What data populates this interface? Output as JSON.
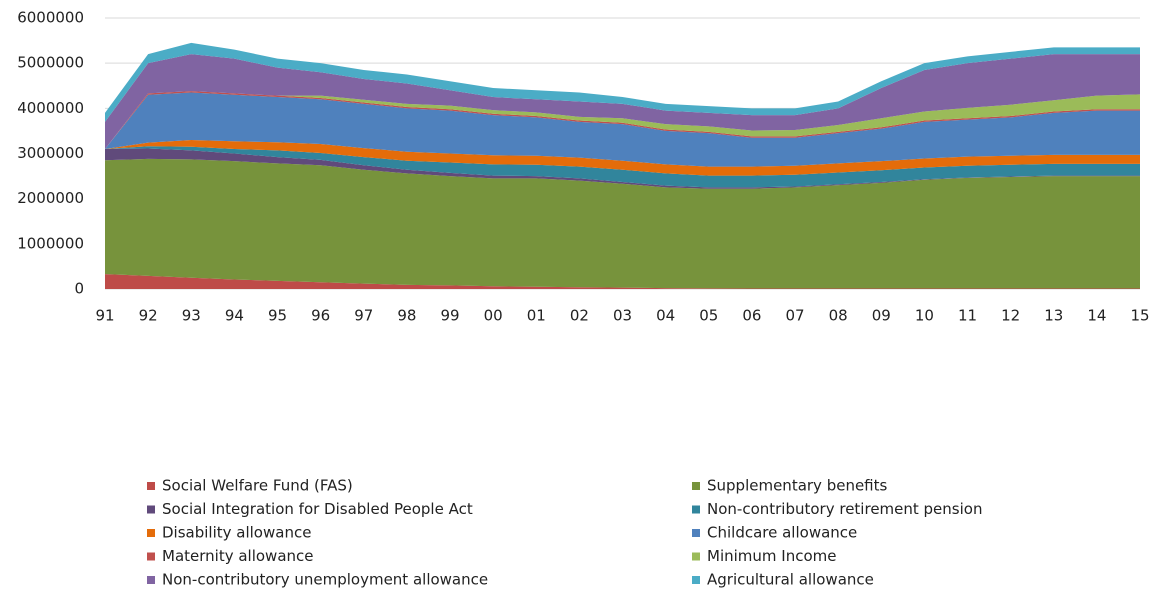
{
  "chart_data": {
    "type": "stacked-area",
    "categories": [
      "91",
      "92",
      "93",
      "94",
      "95",
      "96",
      "97",
      "98",
      "99",
      "00",
      "01",
      "02",
      "03",
      "04",
      "05",
      "06",
      "07",
      "08",
      "09",
      "10",
      "11",
      "12",
      "13",
      "14",
      "15"
    ],
    "ylim": [
      0,
      6000000
    ],
    "yticks": [
      0,
      1000000,
      2000000,
      3000000,
      4000000,
      5000000,
      6000000
    ],
    "grid": true,
    "series": [
      {
        "name": "Social Welfare Fund (FAS)",
        "color": "#be4b48",
        "values": [
          330000,
          290000,
          250000,
          210000,
          180000,
          150000,
          120000,
          90000,
          80000,
          60000,
          50000,
          40000,
          30000,
          20000,
          15000,
          10000,
          10000,
          10000,
          10000,
          10000,
          10000,
          10000,
          10000,
          10000,
          10000
        ]
      },
      {
        "name": "Supplementary benefits",
        "color": "#77933c",
        "values": [
          2520000,
          2590000,
          2620000,
          2620000,
          2600000,
          2590000,
          2520000,
          2470000,
          2420000,
          2390000,
          2400000,
          2360000,
          2300000,
          2230000,
          2205000,
          2210000,
          2240000,
          2290000,
          2340000,
          2410000,
          2450000,
          2470000,
          2490000,
          2490000,
          2490000
        ]
      },
      {
        "name": "Social Integration for Disabled People Act",
        "color": "#604a7b",
        "values": [
          250000,
          230000,
          200000,
          170000,
          140000,
          120000,
          100000,
          80000,
          70000,
          60000,
          50000,
          50000,
          40000,
          40000,
          30000,
          30000,
          20000,
          20000,
          20000,
          10000,
          10000,
          10000,
          10000,
          10000,
          10000
        ]
      },
      {
        "name": "Non-contributory retirement pension",
        "color": "#31859c",
        "values": [
          0,
          50000,
          80000,
          100000,
          150000,
          150000,
          180000,
          200000,
          230000,
          250000,
          250000,
          260000,
          270000,
          270000,
          260000,
          260000,
          260000,
          260000,
          260000,
          260000,
          260000,
          260000,
          260000,
          260000,
          260000
        ]
      },
      {
        "name": "Disability allowance",
        "color": "#e46c0a",
        "values": [
          0,
          80000,
          150000,
          170000,
          180000,
          200000,
          200000,
          200000,
          200000,
          200000,
          200000,
          200000,
          200000,
          200000,
          200000,
          200000,
          200000,
          200000,
          200000,
          200000,
          200000,
          200000,
          200000,
          200000,
          200000
        ]
      },
      {
        "name": "Childcare allowance",
        "color": "#4f81bd",
        "values": [
          0,
          1060000,
          1050000,
          1030000,
          1000000,
          990000,
          980000,
          960000,
          950000,
          890000,
          850000,
          790000,
          810000,
          740000,
          740000,
          640000,
          620000,
          670000,
          720000,
          810000,
          820000,
          850000,
          930000,
          980000,
          980000
        ]
      },
      {
        "name": "Maternity allowance",
        "color": "#c0504d",
        "values": [
          0,
          30000,
          30000,
          30000,
          30000,
          30000,
          30000,
          30000,
          30000,
          30000,
          30000,
          30000,
          30000,
          30000,
          30000,
          30000,
          30000,
          30000,
          30000,
          30000,
          30000,
          30000,
          30000,
          30000,
          30000
        ]
      },
      {
        "name": "Minimum Income",
        "color": "#9bbb59",
        "values": [
          0,
          0,
          0,
          0,
          0,
          50000,
          60000,
          70000,
          80000,
          80000,
          80000,
          80000,
          100000,
          120000,
          120000,
          130000,
          140000,
          150000,
          200000,
          200000,
          230000,
          250000,
          250000,
          300000,
          330000
        ]
      },
      {
        "name": "Non-contributory unemployment allowance",
        "color": "#8064a2",
        "values": [
          600000,
          670000,
          820000,
          770000,
          620000,
          520000,
          460000,
          450000,
          340000,
          290000,
          290000,
          340000,
          320000,
          300000,
          300000,
          340000,
          330000,
          370000,
          670000,
          920000,
          990000,
          1020000,
          1020000,
          920000,
          890000
        ]
      },
      {
        "name": "Agricultural allowance",
        "color": "#4bacc6",
        "values": [
          200000,
          200000,
          250000,
          200000,
          200000,
          200000,
          200000,
          200000,
          200000,
          200000,
          200000,
          200000,
          150000,
          150000,
          150000,
          150000,
          150000,
          150000,
          150000,
          150000,
          150000,
          150000,
          150000,
          150000,
          150000
        ]
      }
    ]
  }
}
